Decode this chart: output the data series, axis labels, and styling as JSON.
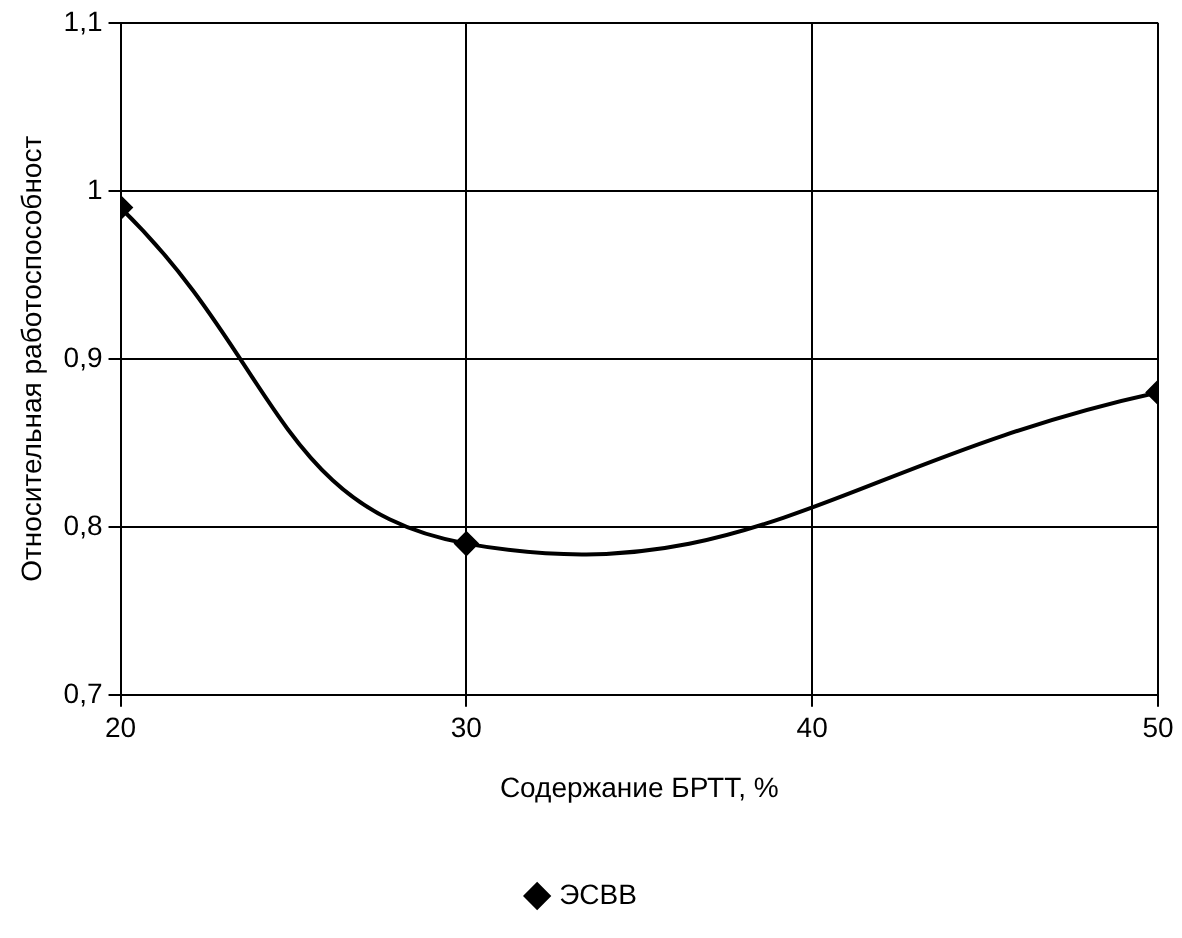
{
  "chart_data": {
    "type": "line",
    "xlabel": "Содержание БРТТ, %",
    "ylabel": "Относительная работоспособност",
    "x": [
      20,
      30,
      50
    ],
    "series": [
      {
        "name": "ЭСВВ",
        "color": "#000000",
        "values": [
          0.99,
          0.79,
          0.88
        ]
      }
    ],
    "xlim": [
      20,
      50
    ],
    "xticks": [
      20,
      30,
      40,
      50
    ],
    "ylim": [
      0.7,
      1.1
    ],
    "yticks": [
      {
        "value": 0.7,
        "label": "0,7"
      },
      {
        "value": 0.8,
        "label": "0,8"
      },
      {
        "value": 0.9,
        "label": "0,9"
      },
      {
        "value": 1.0,
        "label": "1"
      },
      {
        "value": 1.1,
        "label": "1,1"
      }
    ],
    "grid": true,
    "legend": "bottom",
    "marker": "diamond",
    "line_style": "solid"
  }
}
